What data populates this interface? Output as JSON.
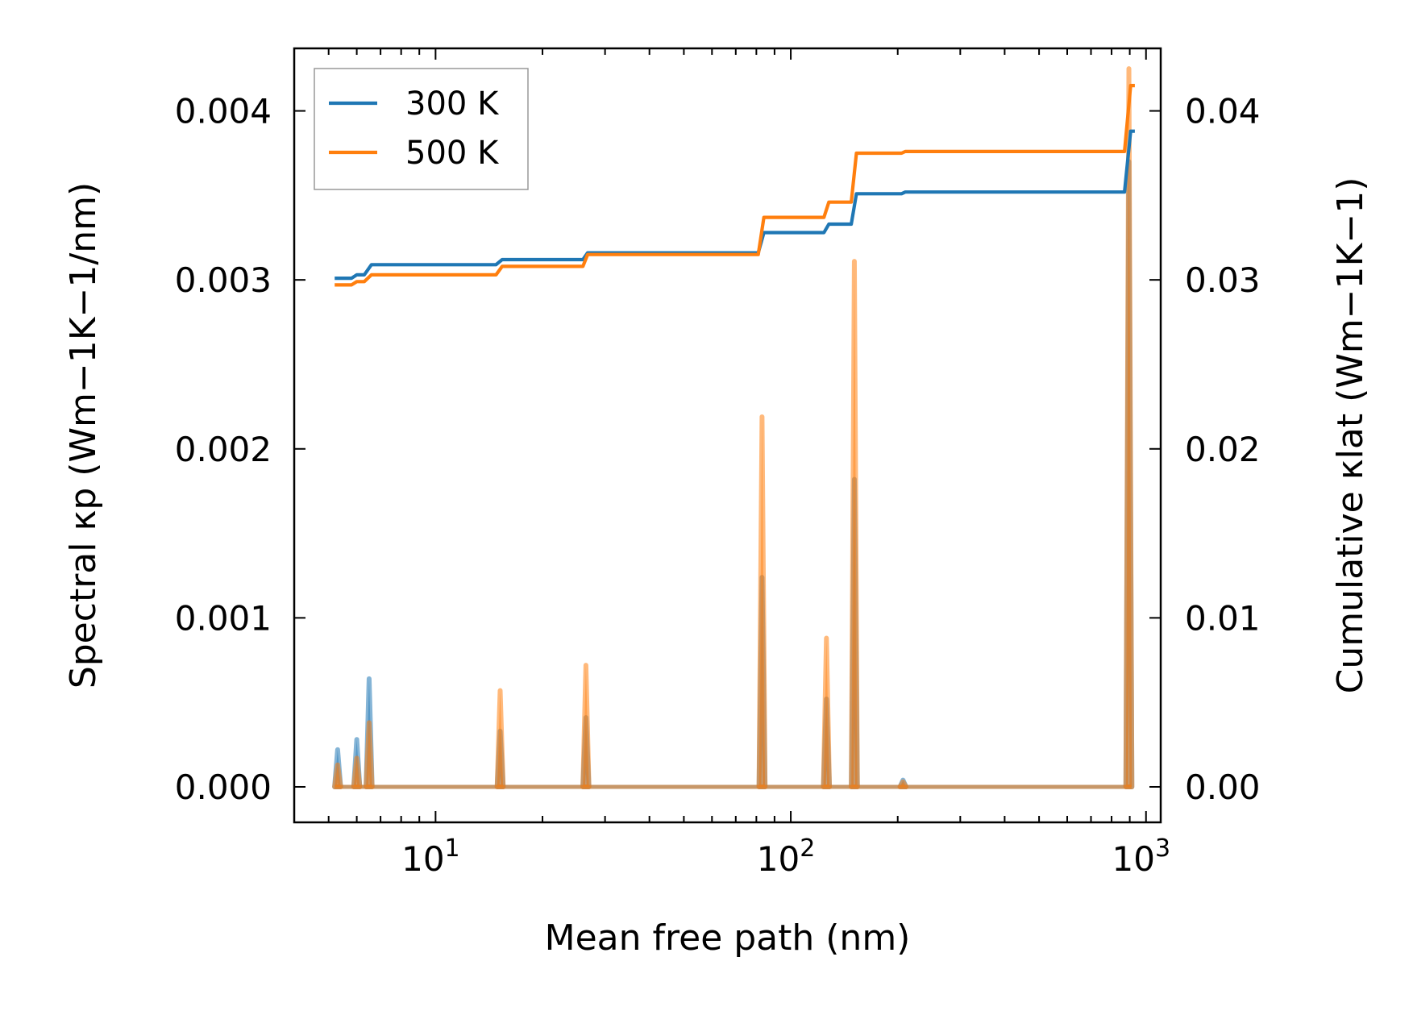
{
  "chart_data": {
    "type": "line",
    "xscale": "log",
    "xlabel": "Mean free path (nm)",
    "ylabel_left": "Spectral κp (Wm−1K−1/nm)",
    "ylabel_right": "Cumulative κlat (Wm−1K−1)",
    "xlim": [
      4.0,
      1100
    ],
    "ylim_left": [
      -0.00021,
      0.00437
    ],
    "ylim_right": [
      -0.0021,
      0.0437
    ],
    "x_ticks": [
      {
        "value": 10,
        "base": "10",
        "exp": "1"
      },
      {
        "value": 100,
        "base": "10",
        "exp": "2"
      },
      {
        "value": 1000,
        "base": "10",
        "exp": "3"
      }
    ],
    "y_left_ticks": [
      {
        "value": 0.0,
        "label": "0.000"
      },
      {
        "value": 0.001,
        "label": "0.001"
      },
      {
        "value": 0.002,
        "label": "0.002"
      },
      {
        "value": 0.003,
        "label": "0.003"
      },
      {
        "value": 0.004,
        "label": "0.004"
      }
    ],
    "y_right_ticks": [
      {
        "value": 0.0,
        "label": "0.00"
      },
      {
        "value": 0.01,
        "label": "0.01"
      },
      {
        "value": 0.02,
        "label": "0.02"
      },
      {
        "value": 0.03,
        "label": "0.03"
      },
      {
        "value": 0.04,
        "label": "0.04"
      }
    ],
    "legend": {
      "position": "upper-left",
      "entries": [
        "300 K",
        "500 K"
      ]
    },
    "series": [
      {
        "name": "300 K",
        "color": "#1f77b4",
        "spectral_peaks": [
          {
            "x": 5.3,
            "y": 0.00022
          },
          {
            "x": 6.0,
            "y": 0.00028
          },
          {
            "x": 6.5,
            "y": 0.00064
          },
          {
            "x": 15.2,
            "y": 0.00033
          },
          {
            "x": 26.5,
            "y": 0.00041
          },
          {
            "x": 83.0,
            "y": 0.00124
          },
          {
            "x": 126.0,
            "y": 0.00052
          },
          {
            "x": 151.0,
            "y": 0.00182
          },
          {
            "x": 207.0,
            "y": 4e-05
          },
          {
            "x": 895.0,
            "y": 0.0037
          }
        ],
        "cumulative": [
          [
            5.2,
            0.0301
          ],
          [
            5.8,
            0.0301
          ],
          [
            6.0,
            0.0303
          ],
          [
            6.3,
            0.0303
          ],
          [
            6.6,
            0.0309
          ],
          [
            14.8,
            0.0309
          ],
          [
            15.4,
            0.0312
          ],
          [
            26.0,
            0.0312
          ],
          [
            26.8,
            0.0316
          ],
          [
            81.0,
            0.0316
          ],
          [
            84.0,
            0.0328
          ],
          [
            124.0,
            0.0328
          ],
          [
            128.0,
            0.0333
          ],
          [
            148.0,
            0.0333
          ],
          [
            153.0,
            0.0351
          ],
          [
            205.0,
            0.0351
          ],
          [
            210.0,
            0.0352
          ],
          [
            870.0,
            0.0352
          ],
          [
            905.0,
            0.0388
          ],
          [
            930.0,
            0.0388
          ]
        ]
      },
      {
        "name": "500 K",
        "color": "#ff7f0e",
        "spectral_peaks": [
          {
            "x": 5.3,
            "y": 0.00013
          },
          {
            "x": 6.0,
            "y": 0.00017
          },
          {
            "x": 6.5,
            "y": 0.00038
          },
          {
            "x": 15.2,
            "y": 0.00057
          },
          {
            "x": 26.5,
            "y": 0.00072
          },
          {
            "x": 83.0,
            "y": 0.00219
          },
          {
            "x": 126.0,
            "y": 0.00088
          },
          {
            "x": 151.0,
            "y": 0.00311
          },
          {
            "x": 207.0,
            "y": 3e-05
          },
          {
            "x": 895.0,
            "y": 0.00425
          }
        ],
        "cumulative": [
          [
            5.2,
            0.0297
          ],
          [
            5.8,
            0.0297
          ],
          [
            6.0,
            0.0299
          ],
          [
            6.3,
            0.0299
          ],
          [
            6.6,
            0.0303
          ],
          [
            14.8,
            0.0303
          ],
          [
            15.4,
            0.0308
          ],
          [
            26.0,
            0.0308
          ],
          [
            26.8,
            0.0315
          ],
          [
            81.0,
            0.0315
          ],
          [
            84.0,
            0.0337
          ],
          [
            124.0,
            0.0337
          ],
          [
            128.0,
            0.0346
          ],
          [
            148.0,
            0.0346
          ],
          [
            153.0,
            0.0375
          ],
          [
            205.0,
            0.0375
          ],
          [
            210.0,
            0.0376
          ],
          [
            870.0,
            0.0376
          ],
          [
            905.0,
            0.0415
          ],
          [
            930.0,
            0.0415
          ]
        ]
      }
    ]
  }
}
